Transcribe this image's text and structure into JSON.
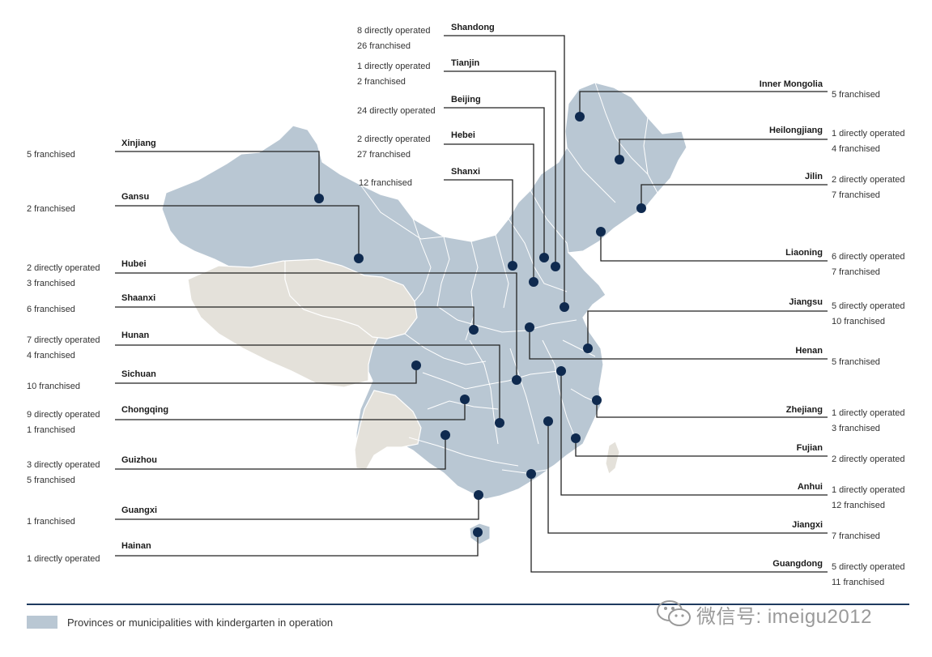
{
  "colors": {
    "operating": "#b9c7d3",
    "non_operating": "#e4e1da",
    "border": "#ffffff",
    "leader": "#222222",
    "dot": "#0f2a4f",
    "rule": "#1e3a5f"
  },
  "provinces": [
    {
      "name": "Shandong",
      "lines": [
        "8 directly operated",
        "26 franchised"
      ]
    },
    {
      "name": "Tianjin",
      "lines": [
        "1 directly operated",
        "2 franchised"
      ]
    },
    {
      "name": "Beijing",
      "lines": [
        "24 directly operated"
      ]
    },
    {
      "name": "Hebei",
      "lines": [
        "2 directly operated",
        "27 franchised"
      ]
    },
    {
      "name": "Shanxi",
      "lines": [
        "12 franchised"
      ]
    },
    {
      "name": "Xinjiang",
      "lines": [
        "5 franchised"
      ]
    },
    {
      "name": "Gansu",
      "lines": [
        "2 franchised"
      ]
    },
    {
      "name": "Hubei",
      "lines": [
        "2 directly operated",
        "3 franchised"
      ]
    },
    {
      "name": "Shaanxi",
      "lines": [
        "6 franchised"
      ]
    },
    {
      "name": "Hunan",
      "lines": [
        "7 directly operated",
        "4 franchised"
      ]
    },
    {
      "name": "Sichuan",
      "lines": [
        "10 franchised"
      ]
    },
    {
      "name": "Chongqing",
      "lines": [
        "9 directly operated",
        "1 franchised"
      ]
    },
    {
      "name": "Guizhou",
      "lines": [
        "3 directly operated",
        "5 franchised"
      ]
    },
    {
      "name": "Guangxi",
      "lines": [
        "1 franchised"
      ]
    },
    {
      "name": "Hainan",
      "lines": [
        "1 directly operated"
      ]
    },
    {
      "name": "Inner Mongolia",
      "lines": [
        "5 franchised"
      ]
    },
    {
      "name": "Heilongjiang",
      "lines": [
        "1 directly operated",
        "4 franchised"
      ]
    },
    {
      "name": "Jilin",
      "lines": [
        "2 directly operated",
        "7 franchised"
      ]
    },
    {
      "name": "Liaoning",
      "lines": [
        "6 directly operated",
        "7 franchised"
      ]
    },
    {
      "name": "Jiangsu",
      "lines": [
        "5 directly operated",
        "10 franchised"
      ]
    },
    {
      "name": "Henan",
      "lines": [
        "5 franchised"
      ]
    },
    {
      "name": "Zhejiang",
      "lines": [
        "1 directly operated",
        "3 franchised"
      ]
    },
    {
      "name": "Fujian",
      "lines": [
        "2 directly operated"
      ]
    },
    {
      "name": "Anhui",
      "lines": [
        "1 directly operated",
        "12 franchised"
      ]
    },
    {
      "name": "Jiangxi",
      "lines": [
        "7 franchised"
      ]
    },
    {
      "name": "Guangdong",
      "lines": [
        "5 directly operated",
        "11 franchised"
      ]
    }
  ],
  "legend": {
    "label": "Provinces or municipalities with kindergarten in operation"
  },
  "watermark": {
    "text": "微信号: imeigu2012",
    "icon": "wechat-icon"
  }
}
